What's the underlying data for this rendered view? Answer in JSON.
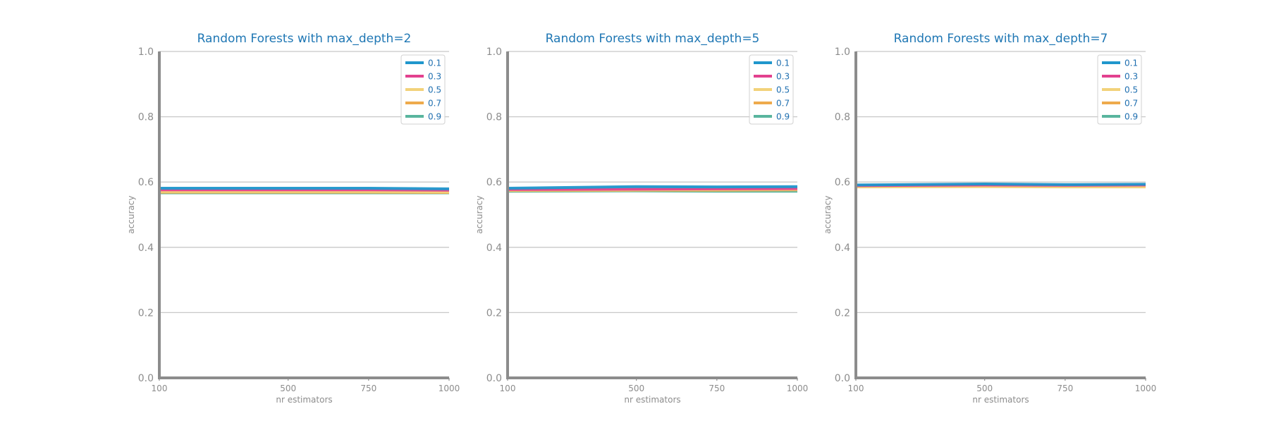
{
  "chart_data": [
    {
      "type": "line",
      "title": "Random Forests with max_depth=2",
      "xlabel": "nr estimators",
      "ylabel": "accuracy",
      "x": [
        100,
        500,
        750,
        1000
      ],
      "x_ticks": [
        "100",
        "500",
        "750",
        "1000"
      ],
      "y_ticks": [
        "0.0",
        "0.2",
        "0.4",
        "0.6",
        "0.8",
        "1.0"
      ],
      "xlim": [
        100,
        1000
      ],
      "ylim": [
        0,
        1
      ],
      "grid": "horizontal",
      "legend": "top-right",
      "series": [
        {
          "name": "0.1",
          "color": "#1f96cc",
          "values": [
            0.581,
            0.581,
            0.581,
            0.579
          ]
        },
        {
          "name": "0.3",
          "color": "#e2418f",
          "values": [
            0.576,
            0.576,
            0.576,
            0.575
          ]
        },
        {
          "name": "0.5",
          "color": "#f2d27a",
          "values": [
            0.571,
            0.571,
            0.571,
            0.57
          ]
        },
        {
          "name": "0.7",
          "color": "#eeaa4c",
          "values": [
            0.569,
            0.569,
            0.569,
            0.568
          ]
        },
        {
          "name": "0.9",
          "color": "#59b59e",
          "values": [
            0.567,
            0.567,
            0.567,
            0.567
          ]
        }
      ]
    },
    {
      "type": "line",
      "title": "Random Forests with max_depth=5",
      "xlabel": "nr estimators",
      "ylabel": "accuracy",
      "x": [
        100,
        500,
        750,
        1000
      ],
      "x_ticks": [
        "100",
        "500",
        "750",
        "1000"
      ],
      "y_ticks": [
        "0.0",
        "0.2",
        "0.4",
        "0.6",
        "0.8",
        "1.0"
      ],
      "xlim": [
        100,
        1000
      ],
      "ylim": [
        0,
        1
      ],
      "grid": "horizontal",
      "legend": "top-right",
      "series": [
        {
          "name": "0.1",
          "color": "#1f96cc",
          "values": [
            0.581,
            0.586,
            0.585,
            0.586
          ]
        },
        {
          "name": "0.3",
          "color": "#e2418f",
          "values": [
            0.577,
            0.578,
            0.579,
            0.58
          ]
        },
        {
          "name": "0.5",
          "color": "#f2d27a",
          "values": [
            0.575,
            0.576,
            0.577,
            0.578
          ]
        },
        {
          "name": "0.7",
          "color": "#eeaa4c",
          "values": [
            0.574,
            0.575,
            0.575,
            0.576
          ]
        },
        {
          "name": "0.9",
          "color": "#59b59e",
          "values": [
            0.572,
            0.573,
            0.572,
            0.572
          ]
        }
      ]
    },
    {
      "type": "line",
      "title": "Random Forests with max_depth=7",
      "xlabel": "nr estimators",
      "ylabel": "accuracy",
      "x": [
        100,
        500,
        750,
        1000
      ],
      "x_ticks": [
        "100",
        "500",
        "750",
        "1000"
      ],
      "y_ticks": [
        "0.0",
        "0.2",
        "0.4",
        "0.6",
        "0.8",
        "1.0"
      ],
      "xlim": [
        100,
        1000
      ],
      "ylim": [
        0,
        1
      ],
      "grid": "horizontal",
      "legend": "top-right",
      "series": [
        {
          "name": "0.1",
          "color": "#1f96cc",
          "values": [
            0.591,
            0.594,
            0.592,
            0.593
          ]
        },
        {
          "name": "0.3",
          "color": "#e2418f",
          "values": [
            0.589,
            0.591,
            0.59,
            0.591
          ]
        },
        {
          "name": "0.5",
          "color": "#f2d27a",
          "values": [
            0.585,
            0.586,
            0.585,
            0.585
          ]
        },
        {
          "name": "0.7",
          "color": "#eeaa4c",
          "values": [
            0.586,
            0.588,
            0.587,
            0.588
          ]
        },
        {
          "name": "0.9",
          "color": "#59b59e",
          "values": [
            0.59,
            0.592,
            0.591,
            0.592
          ]
        }
      ]
    }
  ]
}
